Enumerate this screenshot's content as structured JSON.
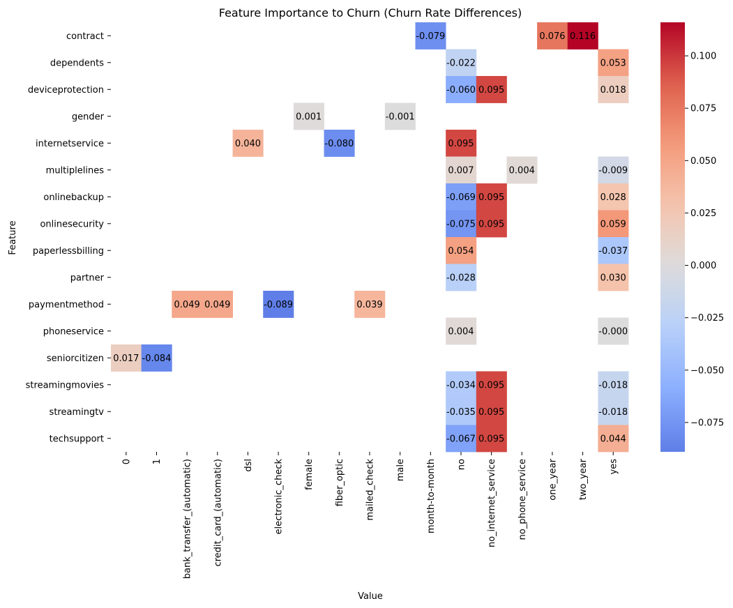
{
  "chart_data": {
    "type": "heatmap",
    "title": "Feature Importance to Churn (Churn Rate Differences)",
    "xlabel": "Value",
    "ylabel": "Feature",
    "columns": [
      "0",
      "1",
      "bank_transfer_(automatic)",
      "credit_card_(automatic)",
      "dsl",
      "electronic_check",
      "female",
      "fiber_optic",
      "mailed_check",
      "male",
      "month-to-month",
      "no",
      "no_internet_service",
      "no_phone_service",
      "one_year",
      "two_year",
      "yes"
    ],
    "rows": [
      "contract",
      "dependents",
      "deviceprotection",
      "gender",
      "internetservice",
      "multiplelines",
      "onlinebackup",
      "onlinesecurity",
      "paperlessbilling",
      "partner",
      "paymentmethod",
      "phoneservice",
      "seniorcitizen",
      "streamingmovies",
      "streamingtv",
      "techsupport"
    ],
    "cells": [
      {
        "row": "contract",
        "col": "month-to-month",
        "value": -0.079,
        "label": "-0.079"
      },
      {
        "row": "contract",
        "col": "one_year",
        "value": 0.076,
        "label": "0.076"
      },
      {
        "row": "contract",
        "col": "two_year",
        "value": 0.116,
        "label": "0.116"
      },
      {
        "row": "dependents",
        "col": "no",
        "value": -0.022,
        "label": "-0.022"
      },
      {
        "row": "dependents",
        "col": "yes",
        "value": 0.053,
        "label": "0.053"
      },
      {
        "row": "deviceprotection",
        "col": "no",
        "value": -0.06,
        "label": "-0.060"
      },
      {
        "row": "deviceprotection",
        "col": "no_internet_service",
        "value": 0.095,
        "label": "0.095"
      },
      {
        "row": "deviceprotection",
        "col": "yes",
        "value": 0.018,
        "label": "0.018"
      },
      {
        "row": "gender",
        "col": "female",
        "value": 0.001,
        "label": "0.001"
      },
      {
        "row": "gender",
        "col": "male",
        "value": -0.001,
        "label": "-0.001"
      },
      {
        "row": "internetservice",
        "col": "dsl",
        "value": 0.04,
        "label": "0.040"
      },
      {
        "row": "internetservice",
        "col": "fiber_optic",
        "value": -0.08,
        "label": "-0.080"
      },
      {
        "row": "internetservice",
        "col": "no",
        "value": 0.095,
        "label": "0.095"
      },
      {
        "row": "multiplelines",
        "col": "no",
        "value": 0.007,
        "label": "0.007"
      },
      {
        "row": "multiplelines",
        "col": "no_phone_service",
        "value": 0.004,
        "label": "0.004"
      },
      {
        "row": "multiplelines",
        "col": "yes",
        "value": -0.009,
        "label": "-0.009"
      },
      {
        "row": "onlinebackup",
        "col": "no",
        "value": -0.069,
        "label": "-0.069"
      },
      {
        "row": "onlinebackup",
        "col": "no_internet_service",
        "value": 0.095,
        "label": "0.095"
      },
      {
        "row": "onlinebackup",
        "col": "yes",
        "value": 0.028,
        "label": "0.028"
      },
      {
        "row": "onlinesecurity",
        "col": "no",
        "value": -0.075,
        "label": "-0.075"
      },
      {
        "row": "onlinesecurity",
        "col": "no_internet_service",
        "value": 0.095,
        "label": "0.095"
      },
      {
        "row": "onlinesecurity",
        "col": "yes",
        "value": 0.059,
        "label": "0.059"
      },
      {
        "row": "paperlessbilling",
        "col": "no",
        "value": 0.054,
        "label": "0.054"
      },
      {
        "row": "paperlessbilling",
        "col": "yes",
        "value": -0.037,
        "label": "-0.037"
      },
      {
        "row": "partner",
        "col": "no",
        "value": -0.028,
        "label": "-0.028"
      },
      {
        "row": "partner",
        "col": "yes",
        "value": 0.03,
        "label": "0.030"
      },
      {
        "row": "paymentmethod",
        "col": "bank_transfer_(automatic)",
        "value": 0.049,
        "label": "0.049"
      },
      {
        "row": "paymentmethod",
        "col": "credit_card_(automatic)",
        "value": 0.049,
        "label": "0.049"
      },
      {
        "row": "paymentmethod",
        "col": "electronic_check",
        "value": -0.089,
        "label": "-0.089"
      },
      {
        "row": "paymentmethod",
        "col": "mailed_check",
        "value": 0.039,
        "label": "0.039"
      },
      {
        "row": "phoneservice",
        "col": "no",
        "value": 0.004,
        "label": "0.004"
      },
      {
        "row": "phoneservice",
        "col": "yes",
        "value": -0.0004,
        "label": "-0.000"
      },
      {
        "row": "seniorcitizen",
        "col": "0",
        "value": 0.017,
        "label": "0.017"
      },
      {
        "row": "seniorcitizen",
        "col": "1",
        "value": -0.084,
        "label": "-0.084"
      },
      {
        "row": "streamingmovies",
        "col": "no",
        "value": -0.034,
        "label": "-0.034"
      },
      {
        "row": "streamingmovies",
        "col": "no_internet_service",
        "value": 0.095,
        "label": "0.095"
      },
      {
        "row": "streamingmovies",
        "col": "yes",
        "value": -0.018,
        "label": "-0.018"
      },
      {
        "row": "streamingtv",
        "col": "no",
        "value": -0.035,
        "label": "-0.035"
      },
      {
        "row": "streamingtv",
        "col": "no_internet_service",
        "value": 0.095,
        "label": "0.095"
      },
      {
        "row": "streamingtv",
        "col": "yes",
        "value": -0.018,
        "label": "-0.018"
      },
      {
        "row": "techsupport",
        "col": "no",
        "value": -0.067,
        "label": "-0.067"
      },
      {
        "row": "techsupport",
        "col": "no_internet_service",
        "value": 0.095,
        "label": "0.095"
      },
      {
        "row": "techsupport",
        "col": "yes",
        "value": 0.044,
        "label": "0.044"
      }
    ],
    "colorbar": {
      "colormap": "coolwarm",
      "center": 0,
      "range": [
        -0.089,
        0.116
      ],
      "ticks": [
        -0.075,
        -0.05,
        -0.025,
        0.0,
        0.025,
        0.05,
        0.075,
        0.1
      ],
      "tick_labels": [
        "−0.075",
        "−0.050",
        "−0.025",
        "0.000",
        "0.025",
        "0.050",
        "0.075",
        "0.100"
      ]
    },
    "grid": false,
    "legend": "colorbar at right"
  }
}
